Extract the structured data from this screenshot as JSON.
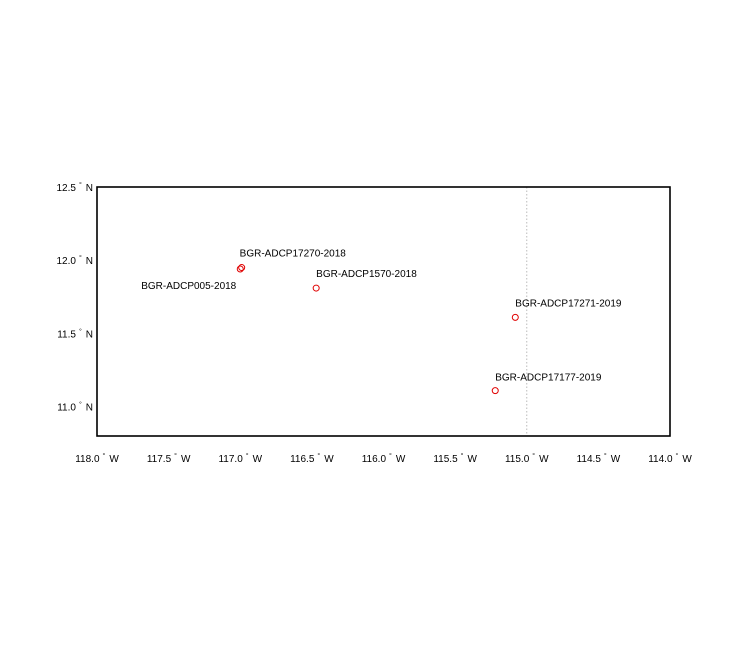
{
  "map": {
    "lon_range": [
      -118.0,
      -114.0
    ],
    "lat_range": [
      10.8,
      12.5
    ],
    "frame_color": "#000000",
    "meridian_line": {
      "lon": -115.0,
      "style": "dotted",
      "color": "#bbbbbb"
    },
    "marker_color": "#e00000",
    "marker_shape": "open-circle",
    "lon_ticks": [
      {
        "value": -118.0,
        "label": "118.0",
        "suffix": "W"
      },
      {
        "value": -117.5,
        "label": "117.5",
        "suffix": "W"
      },
      {
        "value": -117.0,
        "label": "117.0",
        "suffix": "W"
      },
      {
        "value": -116.5,
        "label": "116.5",
        "suffix": "W"
      },
      {
        "value": -116.0,
        "label": "116.0",
        "suffix": "W"
      },
      {
        "value": -115.5,
        "label": "115.5",
        "suffix": "W"
      },
      {
        "value": -115.0,
        "label": "115.0",
        "suffix": "W"
      },
      {
        "value": -114.5,
        "label": "114.5",
        "suffix": "W"
      },
      {
        "value": -114.0,
        "label": "114.0",
        "suffix": "W"
      }
    ],
    "lat_ticks": [
      {
        "value": 12.5,
        "label": "12.5",
        "suffix": "N"
      },
      {
        "value": 12.0,
        "label": "12.0",
        "suffix": "N"
      },
      {
        "value": 11.5,
        "label": "11.5",
        "suffix": "N"
      },
      {
        "value": 11.0,
        "label": "11.0",
        "suffix": "N"
      }
    ],
    "stations": [
      {
        "name": "BGR-ADCP17270-2018",
        "lon": -116.99,
        "lat": 11.95
      },
      {
        "name": "BGR-ADCP005-2018",
        "lon": -117.0,
        "lat": 11.94
      },
      {
        "name": "BGR-ADCP1570-2018",
        "lon": -116.47,
        "lat": 11.81
      },
      {
        "name": "BGR-ADCP17271-2019",
        "lon": -115.08,
        "lat": 11.61
      },
      {
        "name": "BGR-ADCP17177-2019",
        "lon": -115.22,
        "lat": 11.11
      }
    ]
  }
}
